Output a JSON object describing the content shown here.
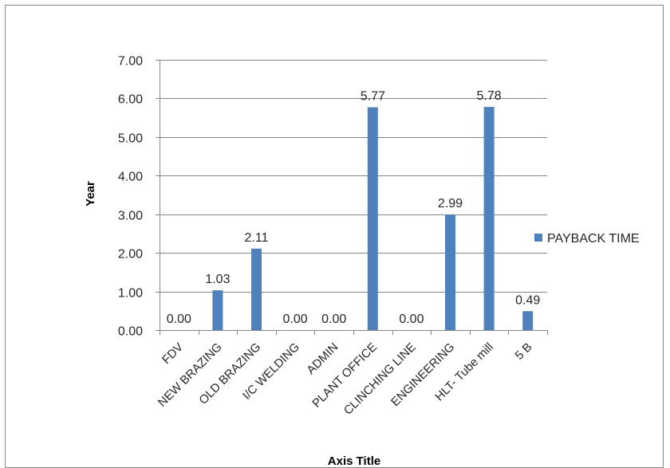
{
  "chart_data": {
    "type": "bar",
    "categories": [
      "FDV",
      "NEW BRAZING",
      "OLD BRAZING",
      "I/C WELDING",
      "ADMIN",
      "PLANT OFFICE",
      "CLINCHING LINE",
      "ENGINEERING",
      "HLT- Tube mill",
      "5 B"
    ],
    "series": [
      {
        "name": "PAYBACK TIME",
        "values": [
          0.0,
          1.03,
          2.11,
          0.0,
          0.0,
          5.77,
          0.0,
          2.99,
          5.78,
          0.49
        ],
        "labels": [
          "0.00",
          "1.03",
          "2.11",
          "0.00",
          "0.00",
          "5.77",
          "0.00",
          "2.99",
          "5.78",
          "0.49"
        ]
      }
    ],
    "ylim": [
      0,
      7
    ],
    "yticks": [
      "0.00",
      "1.00",
      "2.00",
      "3.00",
      "4.00",
      "5.00",
      "6.00",
      "7.00"
    ],
    "ylabel": "Year",
    "xlabel": "Axis Title",
    "legend_position": "right",
    "grid": true,
    "colors": {
      "bar": "#4F81BD",
      "grid": "#868686",
      "axis": "#868686"
    }
  }
}
